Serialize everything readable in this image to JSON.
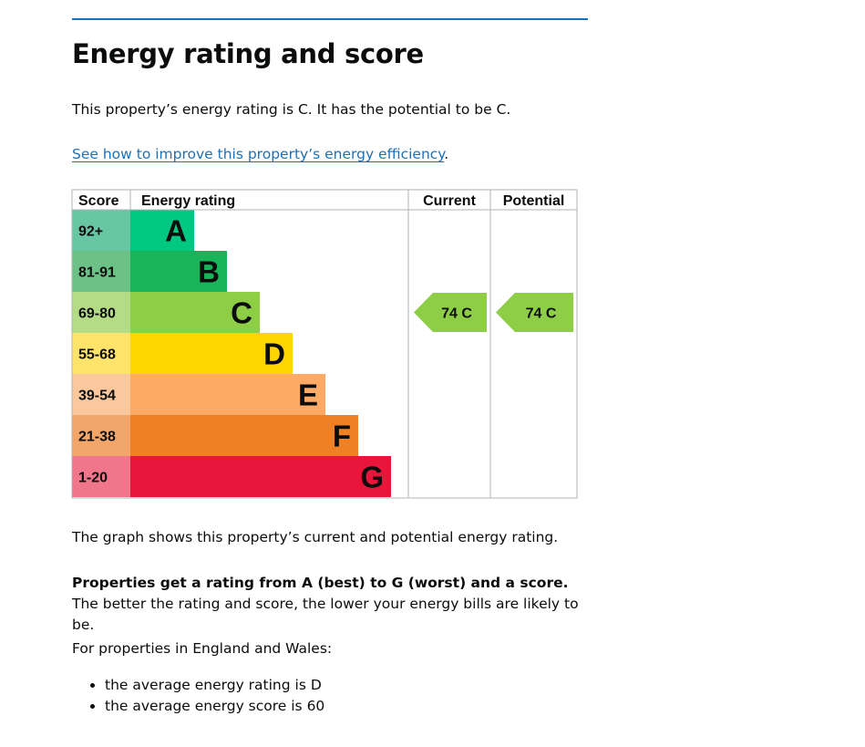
{
  "page": {
    "heading": "Energy rating and score",
    "intro": "This property’s energy rating is C. It has the potential to be C.",
    "improve_link": "See how to improve this property’s energy efficiency",
    "improve_link_suffix": ".",
    "graph_caption": "The graph shows this property’s current and potential energy rating.",
    "rating_explain_bold": "Properties get a rating from A (best) to G (worst) and a score.",
    "rating_explain_rest": " The better the rating and score, the lower your energy bills are likely to be.",
    "region_intro": "For properties in England and Wales:",
    "bullets": [
      "the average energy rating is D",
      "the average energy score is 60"
    ]
  },
  "chart_data": {
    "type": "bar",
    "headers": {
      "score": "Score",
      "rating": "Energy rating",
      "current": "Current",
      "potential": "Potential"
    },
    "bands": [
      {
        "letter": "A",
        "range": "92+",
        "color": "#00c781",
        "score_bg": "#67c7a5"
      },
      {
        "letter": "B",
        "range": "81-91",
        "color": "#19b459",
        "score_bg": "#6cc286"
      },
      {
        "letter": "C",
        "range": "69-80",
        "color": "#8dce46",
        "score_bg": "#b4dc86"
      },
      {
        "letter": "D",
        "range": "55-68",
        "color": "#ffd500",
        "score_bg": "#ffe36b"
      },
      {
        "letter": "E",
        "range": "39-54",
        "color": "#fcaa65",
        "score_bg": "#fbc79c"
      },
      {
        "letter": "F",
        "range": "21-38",
        "color": "#ef8023",
        "score_bg": "#f2a66a"
      },
      {
        "letter": "G",
        "range": "1-20",
        "color": "#e9153b",
        "score_bg": "#f0768b"
      }
    ],
    "current": {
      "score": 74,
      "band": "C",
      "label": "74  C",
      "color": "#8dce46"
    },
    "potential": {
      "score": 74,
      "band": "C",
      "label": "74  C",
      "color": "#8dce46"
    }
  }
}
